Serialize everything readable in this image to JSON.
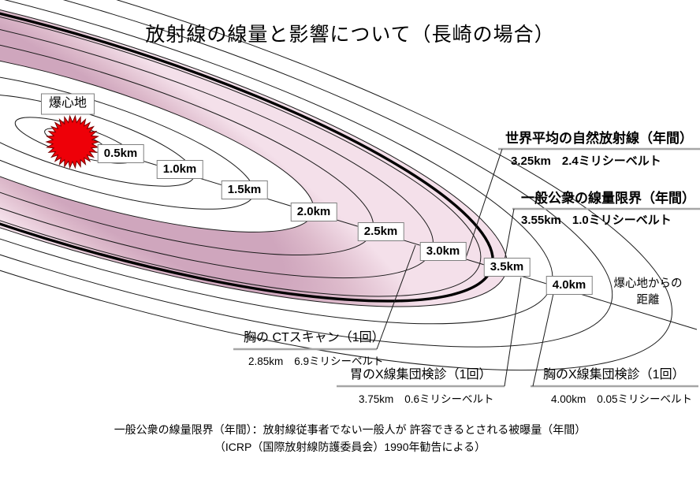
{
  "title": "放射線の線量と影響について（長崎の場合）",
  "hypocenter": {
    "label": "爆心地"
  },
  "axis": {
    "caption_line1": "爆心地からの",
    "caption_line2": "距離"
  },
  "distances": {
    "labels": [
      "0.5km",
      "1.0km",
      "1.5km",
      "2.0km",
      "2.5km",
      "3.0km",
      "3.5km",
      "4.0km"
    ]
  },
  "annotations": {
    "natural_background": {
      "heading": "世界平均の自然放射線（年間）",
      "distance": "3.25km",
      "dose": "2.4ミリシーベルト"
    },
    "public_dose_limit": {
      "heading": "一般公衆の線量限界（年間）",
      "distance": "3.55km",
      "dose": "1.0ミリシーベルト"
    },
    "chest_ct": {
      "heading": "胸の CTスキャン（1回）",
      "distance": "2.85km",
      "dose": "6.9ミリシーベルト"
    },
    "stomach_xray": {
      "heading": "胃のX線集団検診（1回）",
      "distance": "3.75km",
      "dose": "0.6ミリシーベルト"
    },
    "chest_xray": {
      "heading": "胸のX線集団検診（1回）",
      "distance": "4.00km",
      "dose": "0.05ミリシーベルト"
    }
  },
  "footer": {
    "line1": "一般公衆の線量限界（年間）：放射線従事者でない一般人が 許容できるとされる被曝量（年間）",
    "line2": "（ICRP（国際放射線防護委員会）1990年勧告による）"
  },
  "colors": {
    "star_red": "#ee0008",
    "star_outline": "#7a0000",
    "band_dark": "#cfa6bd",
    "band_mid": "#ddbacb",
    "band_light": "#f4e0ea",
    "contour_line": "#1a1a1a",
    "thick_ring": "#000000",
    "underline_gray": "#a6a6a6",
    "label_border": "#7f7f7f"
  },
  "diagram_data": {
    "type": "distance-dose-diagram",
    "location": "長崎",
    "ring_distances_km": [
      0.5,
      1.0,
      1.5,
      2.0,
      2.5,
      3.0,
      3.5,
      4.0
    ],
    "reference_points": [
      {
        "label": "世界平均の自然放射線（年間）",
        "distance_km": 3.25,
        "dose_mSv": 2.4
      },
      {
        "label": "一般公衆の線量限界（年間）",
        "distance_km": 3.55,
        "dose_mSv": 1.0
      },
      {
        "label": "胸の CTスキャン（1回）",
        "distance_km": 2.85,
        "dose_mSv": 6.9
      },
      {
        "label": "胃のX線集団検診（1回）",
        "distance_km": 3.75,
        "dose_mSv": 0.6
      },
      {
        "label": "胸のX線集団検診（1回）",
        "distance_km": 4.0,
        "dose_mSv": 0.05
      }
    ]
  }
}
